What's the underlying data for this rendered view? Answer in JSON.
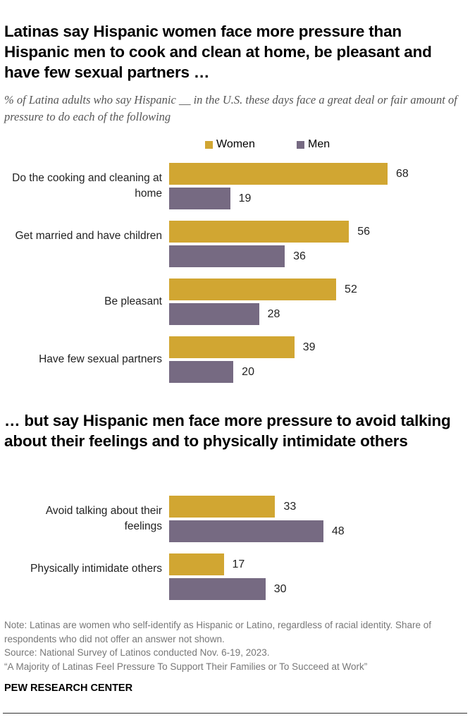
{
  "colors": {
    "women": "#D1A632",
    "men": "#766A82"
  },
  "subtitle": "% of Latina adults who say Hispanic __ in the U.S. these days face a great deal or fair amount of pressure to do each of the following",
  "legend": [
    "Women",
    "Men"
  ],
  "chart_data": [
    {
      "type": "bar",
      "orientation": "horizontal",
      "title": "Latinas say Hispanic women face more pressure than Hispanic men to cook and clean at home, be pleasant and have few sexual partners …",
      "categories": [
        "Do the cooking and cleaning at home",
        "Get married and have children",
        "Be pleasant",
        "Have few sexual partners"
      ],
      "series": [
        {
          "name": "Women",
          "values": [
            68,
            56,
            52,
            39
          ]
        },
        {
          "name": "Men",
          "values": [
            19,
            36,
            28,
            20
          ]
        }
      ]
    },
    {
      "type": "bar",
      "orientation": "horizontal",
      "title": "… but say Hispanic men face more pressure to avoid talking about their feelings and to physically intimidate others",
      "categories": [
        "Avoid talking about their feelings",
        "Physically intimidate others"
      ],
      "series": [
        {
          "name": "Women",
          "values": [
            33,
            17
          ]
        },
        {
          "name": "Men",
          "values": [
            48,
            30
          ]
        }
      ]
    }
  ],
  "notes": [
    "Note: Latinas are women who self-identify as Hispanic or Latino, regardless of racial identity. Share of respondents who did not offer an answer not shown.",
    "Source: National Survey of Latinos conducted Nov. 6-19, 2023.",
    "“A Majority of Latinas Feel Pressure To Support Their Families or To Succeed at Work”"
  ],
  "brand": "PEW RESEARCH CENTER"
}
